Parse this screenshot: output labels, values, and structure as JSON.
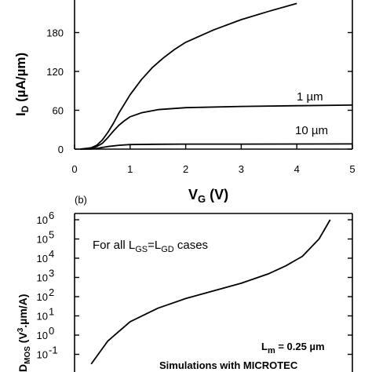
{
  "chart_data": [
    {
      "type": "line",
      "xlabel_main": "V",
      "xlabel_sub": "G",
      "xlabel_unit": " (V)",
      "ylabel_main": "I",
      "ylabel_sub": "D",
      "ylabel_unit": " (µA/µm)",
      "xlim": [
        0,
        5
      ],
      "ylim": [
        0,
        220
      ],
      "x_ticks": [
        "0",
        "1",
        "2",
        "3",
        "4",
        "5"
      ],
      "y_ticks": [
        "0",
        "60",
        "120",
        "180"
      ],
      "series": [
        {
          "name": "",
          "x": [
            0.1,
            0.3,
            0.4,
            0.5,
            0.6,
            0.7,
            0.8,
            1.0,
            1.2,
            1.4,
            1.6,
            1.8,
            2.0,
            2.5,
            3.0,
            3.5,
            4.0
          ],
          "y": [
            0,
            2,
            6,
            14,
            26,
            40,
            56,
            84,
            107,
            126,
            141,
            154,
            165,
            184,
            200,
            213,
            225
          ]
        },
        {
          "name": "1 µm",
          "x": [
            0.1,
            0.3,
            0.4,
            0.5,
            0.6,
            0.7,
            0.8,
            0.9,
            1.0,
            1.2,
            1.5,
            2.0,
            3.0,
            4.0,
            5.0
          ],
          "y": [
            0,
            1,
            4,
            9,
            18,
            28,
            37,
            44,
            50,
            56,
            61,
            64,
            66,
            67,
            68
          ]
        },
        {
          "name": "10 µm",
          "x": [
            0.1,
            0.3,
            0.4,
            0.5,
            0.6,
            0.8,
            1.0,
            1.5,
            2.0,
            3.0,
            4.0,
            5.0
          ],
          "y": [
            0,
            0.3,
            1,
            2.5,
            4,
            6,
            7,
            7.5,
            7.7,
            7.8,
            7.9,
            8
          ]
        }
      ],
      "annotations": [
        "1 µm",
        "10 µm"
      ]
    },
    {
      "type": "line",
      "panel_label": "(b)",
      "ylabel_main": "D",
      "ylabel_sub": "MOS",
      "ylabel_pre": " (V",
      "ylabel_sup": "3",
      "ylabel_post": ".µm/A)",
      "yscale": "log",
      "ylim_exp": [
        -1,
        6
      ],
      "y_ticks": [
        {
          "base": "10",
          "exp": "6"
        },
        {
          "base": "10",
          "exp": "5"
        },
        {
          "base": "10",
          "exp": "4"
        },
        {
          "base": "10",
          "exp": "3"
        },
        {
          "base": "10",
          "exp": "2"
        },
        {
          "base": "10",
          "exp": "1"
        },
        {
          "base": "10",
          "exp": "0"
        },
        {
          "base": "10",
          "exp": "-1"
        }
      ],
      "curve": {
        "x": [
          0.3,
          0.6,
          1.0,
          1.5,
          2.0,
          2.5,
          3.0,
          3.5,
          3.8,
          4.1,
          4.4,
          4.6
        ],
        "log10_y": [
          -1.5,
          -0.3,
          0.7,
          1.4,
          1.9,
          2.3,
          2.7,
          3.2,
          3.6,
          4.1,
          5.0,
          6.0
        ]
      },
      "notes": {
        "for_all_pre": "For all L",
        "for_all_sub1": "GS",
        "for_all_mid": "=L",
        "for_all_sub2": "GD",
        "for_all_post": " cases",
        "lm_main": "L",
        "lm_sub": "m",
        "lm_post": " = 0.25 µm",
        "simulations": "Simulations with MICROTEC"
      }
    }
  ]
}
